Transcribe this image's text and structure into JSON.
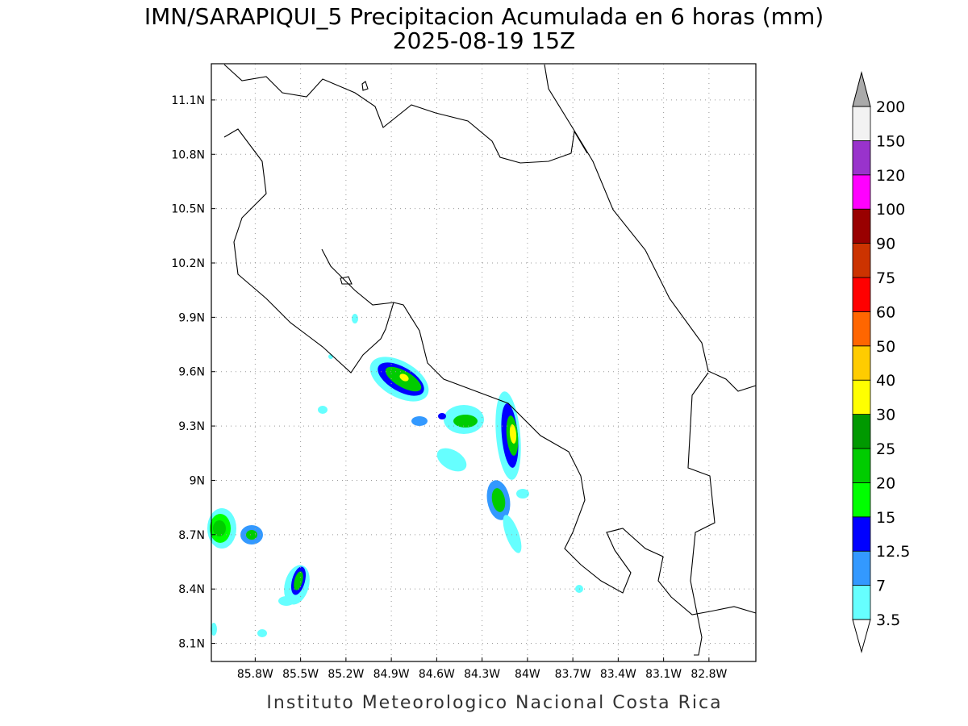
{
  "map": {
    "title": "IMN/SARAPIQUI_5 Precipitacion Acumulada en 6 horas (mm)",
    "subtitle": "2025-08-19 15Z",
    "footer": "Instituto Meteorologico Nacional Costa Rica",
    "lonlim": [
      -86.09,
      -82.49
    ],
    "latlim": [
      8.0,
      11.3
    ],
    "lon_ticks": [
      {
        "value": -85.8,
        "label": "85.8W"
      },
      {
        "value": -85.5,
        "label": "85.5W"
      },
      {
        "value": -85.2,
        "label": "85.2W"
      },
      {
        "value": -84.9,
        "label": "84.9W"
      },
      {
        "value": -84.6,
        "label": "84.6W"
      },
      {
        "value": -84.3,
        "label": "84.3W"
      },
      {
        "value": -84.0,
        "label": "84W"
      },
      {
        "value": -83.7,
        "label": "83.7W"
      },
      {
        "value": -83.4,
        "label": "83.4W"
      },
      {
        "value": -83.1,
        "label": "83.1W"
      },
      {
        "value": -82.8,
        "label": "82.8W"
      }
    ],
    "lat_ticks": [
      {
        "value": 8.1,
        "label": "8.1N"
      },
      {
        "value": 8.4,
        "label": "8.4N"
      },
      {
        "value": 8.7,
        "label": "8.7N"
      },
      {
        "value": 9.0,
        "label": "9N"
      },
      {
        "value": 9.3,
        "label": "9.3N"
      },
      {
        "value": 9.6,
        "label": "9.6N"
      },
      {
        "value": 9.9,
        "label": "9.9N"
      },
      {
        "value": 10.2,
        "label": "10.2N"
      },
      {
        "value": 10.5,
        "label": "10.5N"
      },
      {
        "value": 10.8,
        "label": "10.8N"
      },
      {
        "value": 11.1,
        "label": "11.1N"
      }
    ],
    "grid": true,
    "colorbar": {
      "levels": [
        3.5,
        7,
        12.5,
        15,
        20,
        25,
        30,
        40,
        50,
        60,
        75,
        90,
        100,
        120,
        150,
        200
      ],
      "colors": [
        "#66ffff",
        "#3399ff",
        "#0000ff",
        "#00ff00",
        "#00cc00",
        "#009900",
        "#ffff00",
        "#ffcc00",
        "#ff6600",
        "#ff0000",
        "#cc3300",
        "#990000",
        "#ff00ff",
        "#9933cc",
        "#f2f2f2"
      ],
      "under_color": "#ffffff",
      "over_color": "#aaaaaa"
    }
  }
}
